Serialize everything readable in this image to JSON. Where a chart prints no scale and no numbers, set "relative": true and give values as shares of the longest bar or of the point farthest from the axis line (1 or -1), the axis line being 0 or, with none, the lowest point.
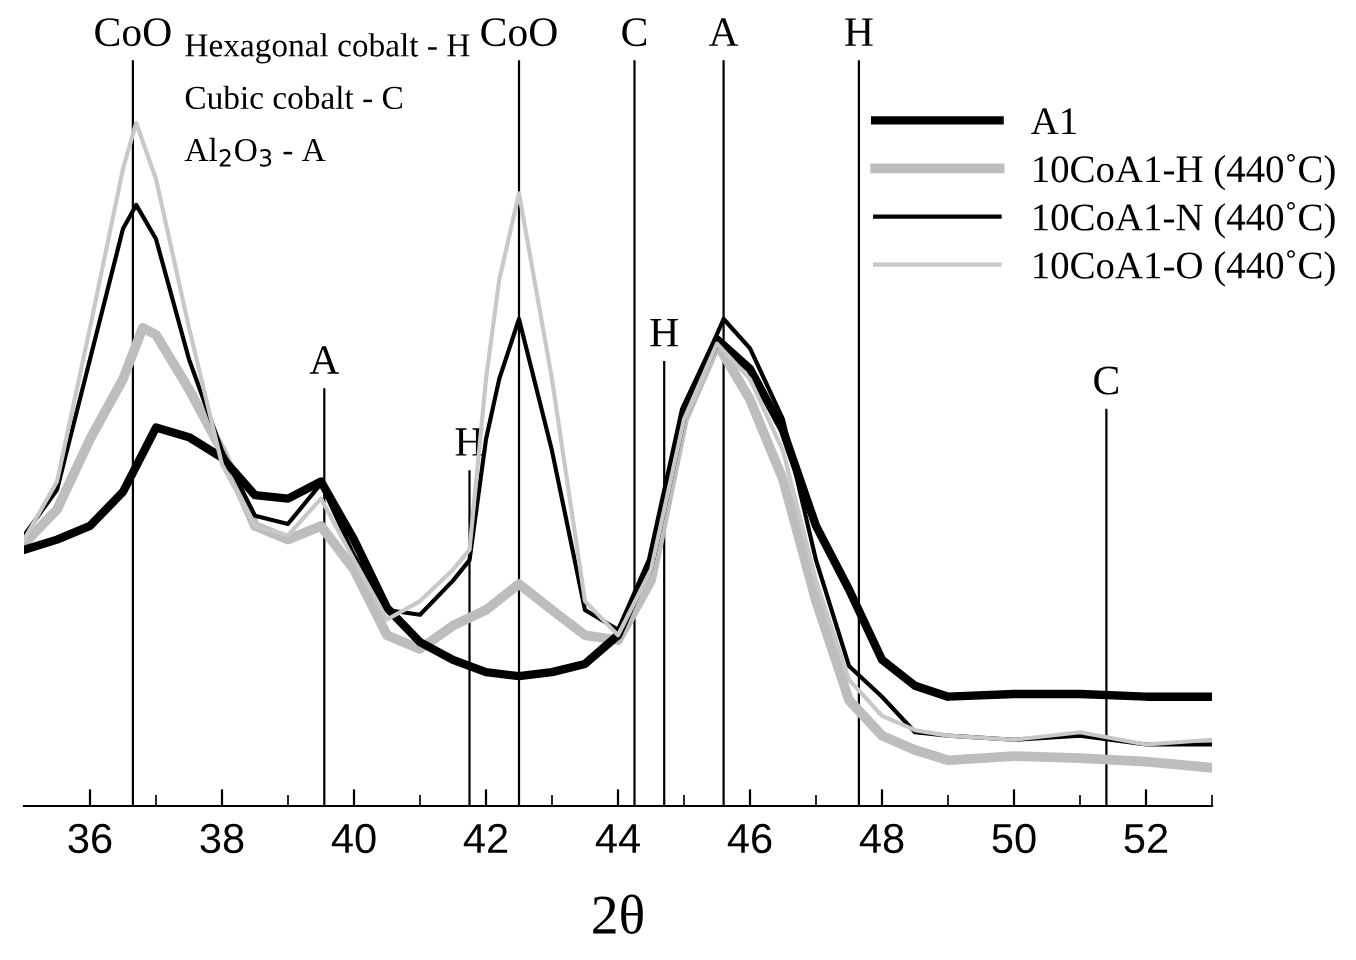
{
  "chart_data": {
    "type": "line",
    "relative": true,
    "xlabel": "2θ",
    "xlim": [
      35,
      53
    ],
    "xticks": [
      36,
      38,
      40,
      42,
      44,
      46,
      48,
      50,
      52
    ],
    "legend": "top right",
    "grid": false,
    "marker": "none",
    "line_style": "solid",
    "tick_labels": "x",
    "annotations": [
      "Hexagonal cobalt - H",
      "Cubic cobalt - C",
      "Al$_{2}$O$_{3}$ - A"
    ],
    "ref_lines": [
      {
        "axis": "x",
        "value": 36.65,
        "label": "CoO",
        "color": "#000000"
      },
      {
        "axis": "x",
        "value": 39.55,
        "label": "A",
        "color": "#000000"
      },
      {
        "axis": "x",
        "value": 41.75,
        "label": "H",
        "color": "#000000"
      },
      {
        "axis": "x",
        "value": 42.5,
        "label": "CoO",
        "color": "#000000"
      },
      {
        "axis": "x",
        "value": 44.25,
        "label": "C",
        "color": "#000000"
      },
      {
        "axis": "x",
        "value": 44.7,
        "label": "H",
        "color": "#000000"
      },
      {
        "axis": "x",
        "value": 45.6,
        "label": "A",
        "color": "#000000"
      },
      {
        "axis": "x",
        "value": 47.65,
        "label": "H",
        "color": "#000000"
      },
      {
        "axis": "x",
        "value": 51.4,
        "label": "C",
        "color": "#000000"
      }
    ],
    "series": [
      {
        "name": "A1",
        "color": "#000000",
        "x": [
          35,
          35.5,
          36,
          36.5,
          37,
          37.5,
          38,
          38.5,
          39,
          39.5,
          40,
          40.5,
          41,
          41.5,
          42,
          42.5,
          43,
          43.5,
          44,
          44.5,
          45,
          45.5,
          46,
          46.5,
          47,
          47.5,
          48,
          48.5,
          49,
          50,
          51,
          52,
          53
        ],
        "values": [
          0.375,
          0.39,
          0.41,
          0.46,
          0.554,
          0.54,
          0.51,
          0.455,
          0.45,
          0.475,
          0.39,
          0.29,
          0.24,
          0.214,
          0.196,
          0.19,
          0.196,
          0.208,
          0.25,
          0.36,
          0.58,
          0.683,
          0.64,
          0.55,
          0.41,
          0.317,
          0.214,
          0.176,
          0.16,
          0.164,
          0.164,
          0.16,
          0.16
        ]
      },
      {
        "name": "10CoA1-H (440˚C)",
        "color": "#bdbdbd",
        "x": [
          35,
          35.5,
          36,
          36.5,
          36.8,
          37,
          37.5,
          38,
          38.5,
          39,
          39.5,
          40,
          40.5,
          41,
          41.5,
          42,
          42.5,
          43,
          43.5,
          44,
          44.5,
          45,
          45.5,
          46,
          46.5,
          47,
          47.5,
          48,
          48.5,
          49,
          50,
          51,
          52,
          53
        ],
        "values": [
          0.384,
          0.434,
          0.537,
          0.625,
          0.7,
          0.69,
          0.61,
          0.52,
          0.41,
          0.39,
          0.41,
          0.346,
          0.25,
          0.23,
          0.264,
          0.287,
          0.325,
          0.287,
          0.25,
          0.243,
          0.33,
          0.566,
          0.677,
          0.595,
          0.478,
          0.3,
          0.155,
          0.103,
          0.082,
          0.067,
          0.073,
          0.07,
          0.065,
          0.056
        ]
      },
      {
        "name": "10CoA1-N (440˚C)",
        "color": "#000000",
        "x": [
          35,
          35.5,
          36,
          36.5,
          36.7,
          37,
          37.5,
          38,
          38.5,
          39,
          39.5,
          40,
          40.5,
          41,
          41.5,
          41.75,
          42,
          42.2,
          42.5,
          43,
          43.5,
          44,
          44.5,
          45,
          45.6,
          46,
          46.5,
          47,
          47.5,
          48,
          48.5,
          49,
          50,
          51,
          52,
          53
        ],
        "values": [
          0.396,
          0.463,
          0.654,
          0.845,
          0.88,
          0.83,
          0.654,
          0.52,
          0.425,
          0.413,
          0.472,
          0.367,
          0.287,
          0.28,
          0.33,
          0.36,
          0.537,
          0.625,
          0.713,
          0.52,
          0.287,
          0.258,
          0.346,
          0.58,
          0.713,
          0.67,
          0.566,
          0.36,
          0.205,
          0.16,
          0.108,
          0.103,
          0.097,
          0.103,
          0.09,
          0.09
        ]
      },
      {
        "name": "10CoA1-O (440˚C)",
        "color": "#c8c8c8",
        "x": [
          35,
          35.5,
          36,
          36.5,
          36.7,
          37,
          37.5,
          38,
          38.5,
          39,
          39.5,
          40,
          40.5,
          41,
          41.5,
          41.75,
          42,
          42.2,
          42.5,
          43,
          43.5,
          44,
          44.5,
          45,
          45.5,
          46,
          46.5,
          47,
          47.5,
          48,
          48.5,
          49,
          50,
          51,
          52,
          53
        ],
        "values": [
          0.39,
          0.475,
          0.7,
          0.933,
          1.0,
          0.918,
          0.7,
          0.5,
          0.41,
          0.396,
          0.45,
          0.36,
          0.273,
          0.3,
          0.346,
          0.375,
          0.625,
          0.77,
          0.897,
          0.625,
          0.3,
          0.25,
          0.346,
          0.566,
          0.677,
          0.625,
          0.52,
          0.33,
          0.185,
          0.132,
          0.111,
          0.103,
          0.097,
          0.108,
          0.09,
          0.097
        ]
      }
    ]
  }
}
